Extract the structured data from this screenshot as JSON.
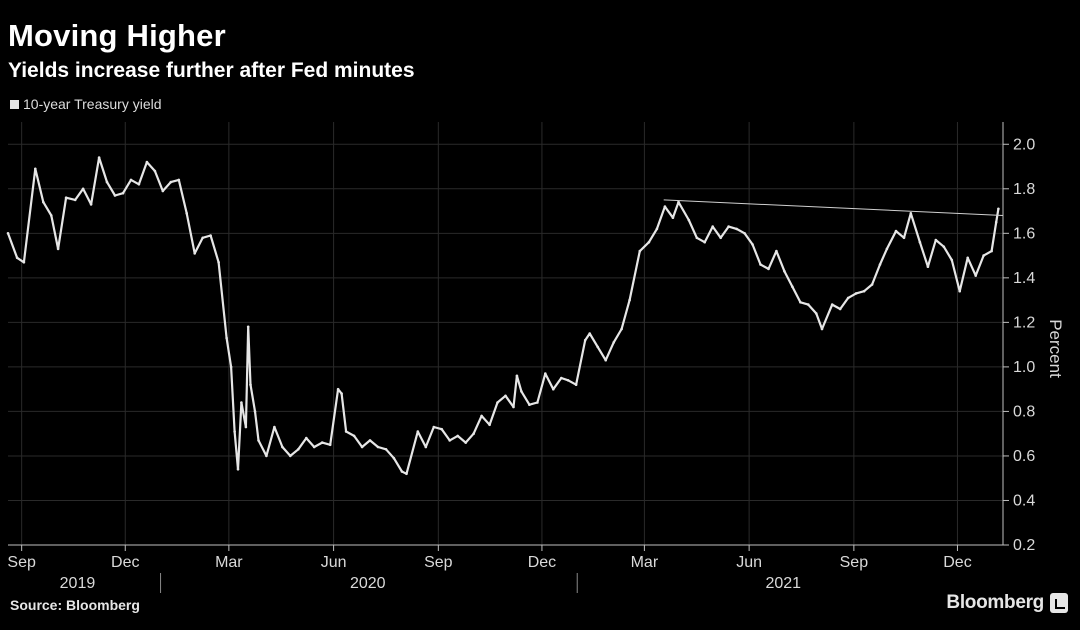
{
  "header": {
    "title": "Moving Higher",
    "subtitle": "Yields increase further after Fed minutes"
  },
  "footer": {
    "source": "Source: Bloomberg",
    "brand": "Bloomberg"
  },
  "colors": {
    "background": "#000000",
    "line": "#e6e6e6",
    "grid": "#2a2a2a",
    "text": "#d9d9d9"
  },
  "chart_data": {
    "type": "line",
    "title": "Moving Higher",
    "subtitle": "Yields increase further after Fed minutes",
    "ylabel": "Percent",
    "xlabel": "",
    "ylim": [
      0.2,
      2.1
    ],
    "y_ticks": [
      0.2,
      0.4,
      0.6,
      0.8,
      1.0,
      1.2,
      1.4,
      1.6,
      1.8,
      2.0
    ],
    "y_tick_labels": [
      "0.2",
      "0.4",
      "0.6",
      "0.8",
      "1.0",
      "1.2",
      "1.4",
      "1.6",
      "1.8",
      "2.0"
    ],
    "x_range": [
      "2019-08-20",
      "2022-01-10"
    ],
    "x_ticks": [
      {
        "date": "2019-09-01",
        "label": "Sep"
      },
      {
        "date": "2019-12-01",
        "label": "Dec"
      },
      {
        "date": "2020-03-01",
        "label": "Mar"
      },
      {
        "date": "2020-06-01",
        "label": "Jun"
      },
      {
        "date": "2020-09-01",
        "label": "Sep"
      },
      {
        "date": "2020-12-01",
        "label": "Dec"
      },
      {
        "date": "2021-03-01",
        "label": "Mar"
      },
      {
        "date": "2021-06-01",
        "label": "Jun"
      },
      {
        "date": "2021-09-01",
        "label": "Sep"
      },
      {
        "date": "2021-12-01",
        "label": "Dec"
      }
    ],
    "years": [
      {
        "label": "2019",
        "center": "2019-10-20"
      },
      {
        "label": "2020",
        "center": "2020-07-01"
      },
      {
        "label": "2021",
        "center": "2021-07-01"
      }
    ],
    "year_boundaries": [
      "2020-01-01",
      "2021-01-01"
    ],
    "grid": true,
    "legend_position": "top-left",
    "series": [
      {
        "name": "10-year Treasury yield",
        "x": [
          "2019-08-20",
          "2019-08-28",
          "2019-09-03",
          "2019-09-13",
          "2019-09-20",
          "2019-09-27",
          "2019-10-03",
          "2019-10-10",
          "2019-10-18",
          "2019-10-25",
          "2019-11-01",
          "2019-11-08",
          "2019-11-15",
          "2019-11-22",
          "2019-11-29",
          "2019-12-06",
          "2019-12-13",
          "2019-12-20",
          "2019-12-27",
          "2020-01-03",
          "2020-01-10",
          "2020-01-17",
          "2020-01-24",
          "2020-01-31",
          "2020-02-07",
          "2020-02-14",
          "2020-02-21",
          "2020-02-28",
          "2020-03-03",
          "2020-03-06",
          "2020-03-09",
          "2020-03-12",
          "2020-03-16",
          "2020-03-18",
          "2020-03-20",
          "2020-03-24",
          "2020-03-27",
          "2020-04-03",
          "2020-04-10",
          "2020-04-17",
          "2020-04-24",
          "2020-05-01",
          "2020-05-08",
          "2020-05-15",
          "2020-05-22",
          "2020-05-29",
          "2020-06-05",
          "2020-06-08",
          "2020-06-12",
          "2020-06-19",
          "2020-06-26",
          "2020-07-03",
          "2020-07-10",
          "2020-07-17",
          "2020-07-24",
          "2020-07-31",
          "2020-08-04",
          "2020-08-14",
          "2020-08-21",
          "2020-08-28",
          "2020-09-04",
          "2020-09-11",
          "2020-09-18",
          "2020-09-25",
          "2020-10-02",
          "2020-10-09",
          "2020-10-16",
          "2020-10-23",
          "2020-10-30",
          "2020-11-06",
          "2020-11-09",
          "2020-11-13",
          "2020-11-20",
          "2020-11-27",
          "2020-12-04",
          "2020-12-11",
          "2020-12-18",
          "2020-12-24",
          "2020-12-31",
          "2021-01-08",
          "2021-01-12",
          "2021-01-19",
          "2021-01-26",
          "2021-02-02",
          "2021-02-09",
          "2021-02-16",
          "2021-02-25",
          "2021-03-05",
          "2021-03-12",
          "2021-03-19",
          "2021-03-26",
          "2021-03-31",
          "2021-04-09",
          "2021-04-16",
          "2021-04-23",
          "2021-04-30",
          "2021-05-07",
          "2021-05-14",
          "2021-05-21",
          "2021-05-28",
          "2021-06-04",
          "2021-06-11",
          "2021-06-18",
          "2021-06-25",
          "2021-07-02",
          "2021-07-09",
          "2021-07-16",
          "2021-07-23",
          "2021-07-30",
          "2021-08-04",
          "2021-08-13",
          "2021-08-20",
          "2021-08-27",
          "2021-09-03",
          "2021-09-10",
          "2021-09-17",
          "2021-09-24",
          "2021-09-30",
          "2021-10-08",
          "2021-10-15",
          "2021-10-21",
          "2021-10-29",
          "2021-11-05",
          "2021-11-12",
          "2021-11-19",
          "2021-11-26",
          "2021-12-03",
          "2021-12-10",
          "2021-12-17",
          "2021-12-24",
          "2021-12-31",
          "2022-01-04",
          "2022-01-06"
        ],
        "y": [
          1.6,
          1.49,
          1.47,
          1.89,
          1.74,
          1.68,
          1.53,
          1.76,
          1.75,
          1.8,
          1.73,
          1.94,
          1.83,
          1.77,
          1.78,
          1.84,
          1.82,
          1.92,
          1.88,
          1.79,
          1.83,
          1.84,
          1.69,
          1.51,
          1.58,
          1.59,
          1.47,
          1.13,
          1.0,
          0.71,
          0.54,
          0.84,
          0.73,
          1.18,
          0.92,
          0.8,
          0.67,
          0.6,
          0.73,
          0.64,
          0.6,
          0.63,
          0.68,
          0.64,
          0.66,
          0.65,
          0.9,
          0.88,
          0.71,
          0.69,
          0.64,
          0.67,
          0.64,
          0.63,
          0.59,
          0.53,
          0.52,
          0.71,
          0.64,
          0.73,
          0.72,
          0.67,
          0.69,
          0.66,
          0.7,
          0.78,
          0.74,
          0.84,
          0.87,
          0.82,
          0.96,
          0.89,
          0.83,
          0.84,
          0.97,
          0.9,
          0.95,
          0.94,
          0.92,
          1.12,
          1.15,
          1.09,
          1.03,
          1.11,
          1.17,
          1.3,
          1.52,
          1.56,
          1.62,
          1.72,
          1.67,
          1.74,
          1.66,
          1.58,
          1.56,
          1.63,
          1.58,
          1.63,
          1.62,
          1.6,
          1.55,
          1.46,
          1.44,
          1.52,
          1.43,
          1.36,
          1.29,
          1.28,
          1.24,
          1.17,
          1.28,
          1.26,
          1.31,
          1.33,
          1.34,
          1.37,
          1.46,
          1.53,
          1.61,
          1.58,
          1.69,
          1.56,
          1.45,
          1.57,
          1.54,
          1.48,
          1.34,
          1.49,
          1.41,
          1.5,
          1.52,
          1.65,
          1.71
        ]
      },
      {
        "name": "trendline",
        "x": [
          "2021-03-18",
          "2022-01-10"
        ],
        "y": [
          1.75,
          1.68
        ]
      }
    ]
  }
}
